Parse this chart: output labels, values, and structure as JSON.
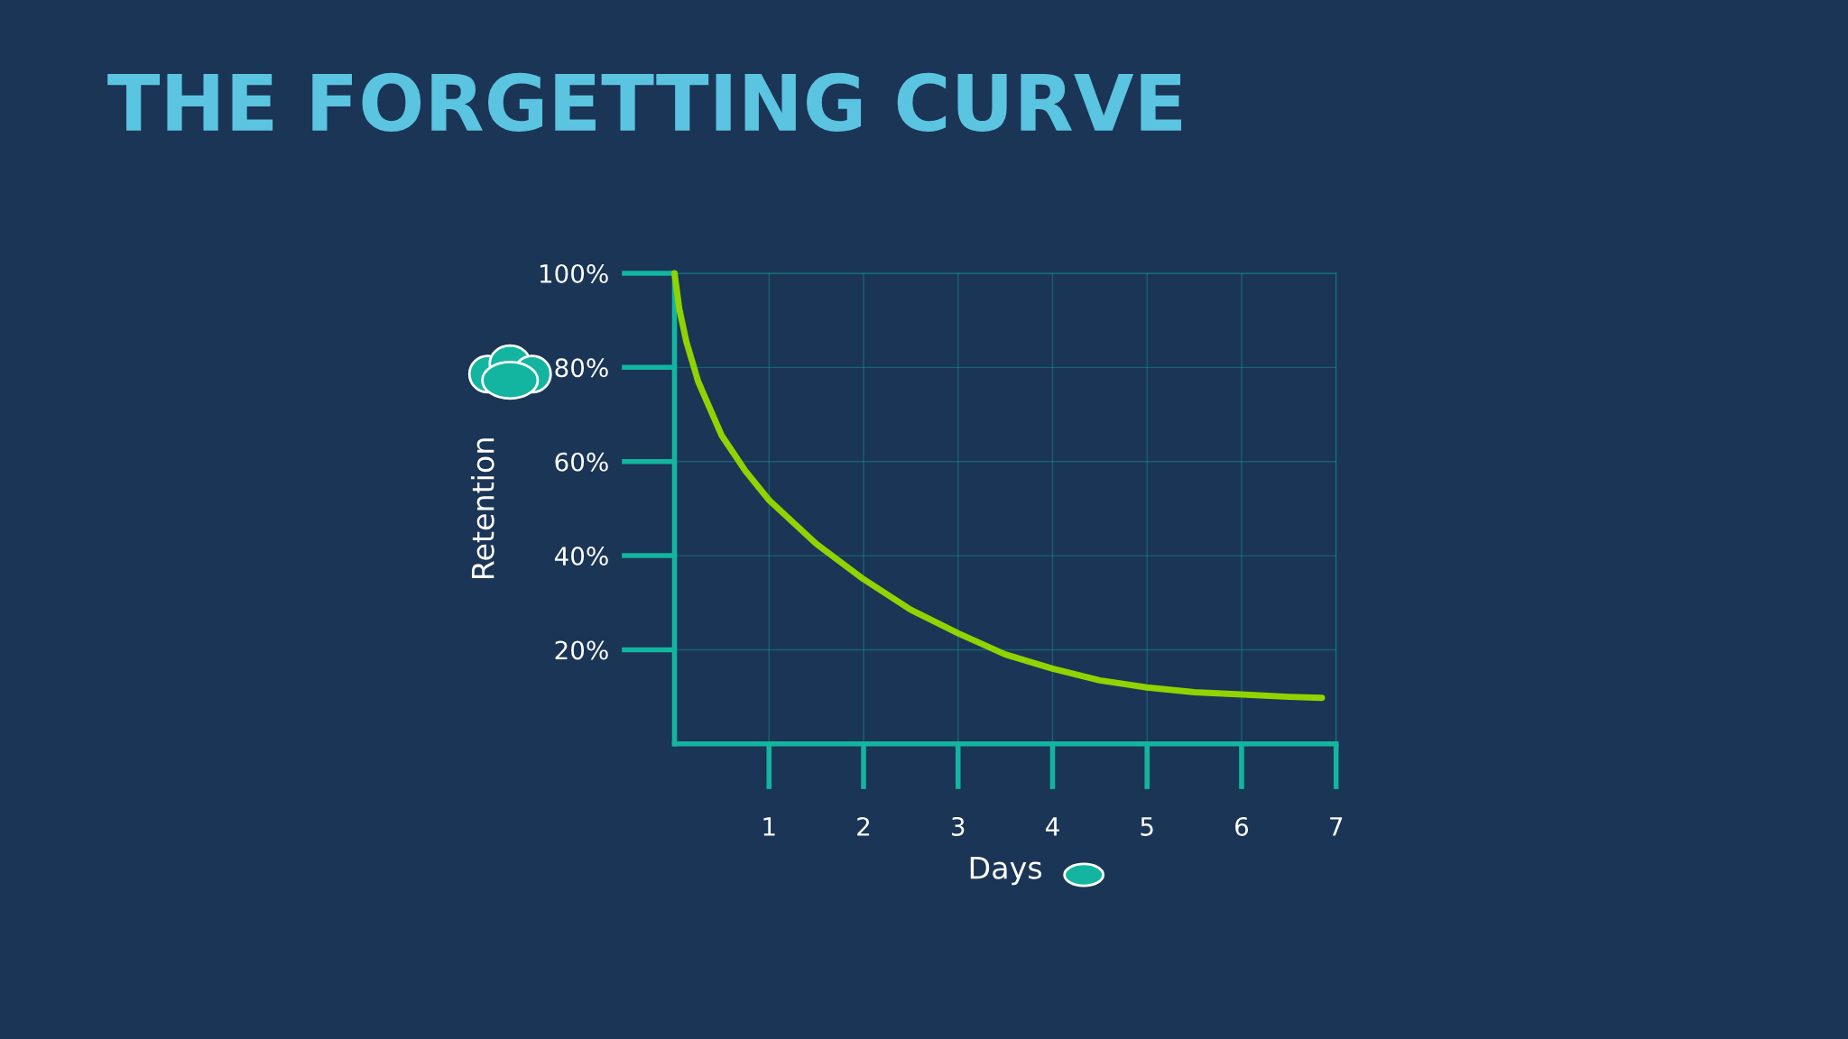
{
  "chart_data": {
    "type": "line",
    "title": "THE FORGETTING CURVE",
    "xlabel": "Days",
    "ylabel": "Retention",
    "x": [
      0,
      0.05,
      0.125,
      0.25,
      0.5,
      0.75,
      1,
      1.5,
      2,
      2.5,
      3,
      3.5,
      4,
      4.5,
      5,
      5.5,
      6,
      6.5,
      6.85
    ],
    "series": [
      {
        "color": "#8fd400",
        "values": [
          100,
          92.5,
          85.5,
          77,
          65.5,
          58,
          51.8,
          42.5,
          35,
          28.5,
          23.5,
          19,
          16,
          13.5,
          12,
          11,
          10.5,
          10,
          9.8
        ]
      }
    ],
    "xlim": [
      0,
      7
    ],
    "ylim": [
      0,
      100
    ],
    "xticks": [
      1,
      2,
      3,
      4,
      5,
      6,
      7
    ],
    "yticks": [
      {
        "value": 20,
        "label": "20%"
      },
      {
        "value": 40,
        "label": "40%"
      },
      {
        "value": 60,
        "label": "60%"
      },
      {
        "value": 80,
        "label": "80%"
      },
      {
        "value": 100,
        "label": "100%"
      }
    ],
    "grid": true,
    "marker": "none",
    "line_style": "solid"
  }
}
